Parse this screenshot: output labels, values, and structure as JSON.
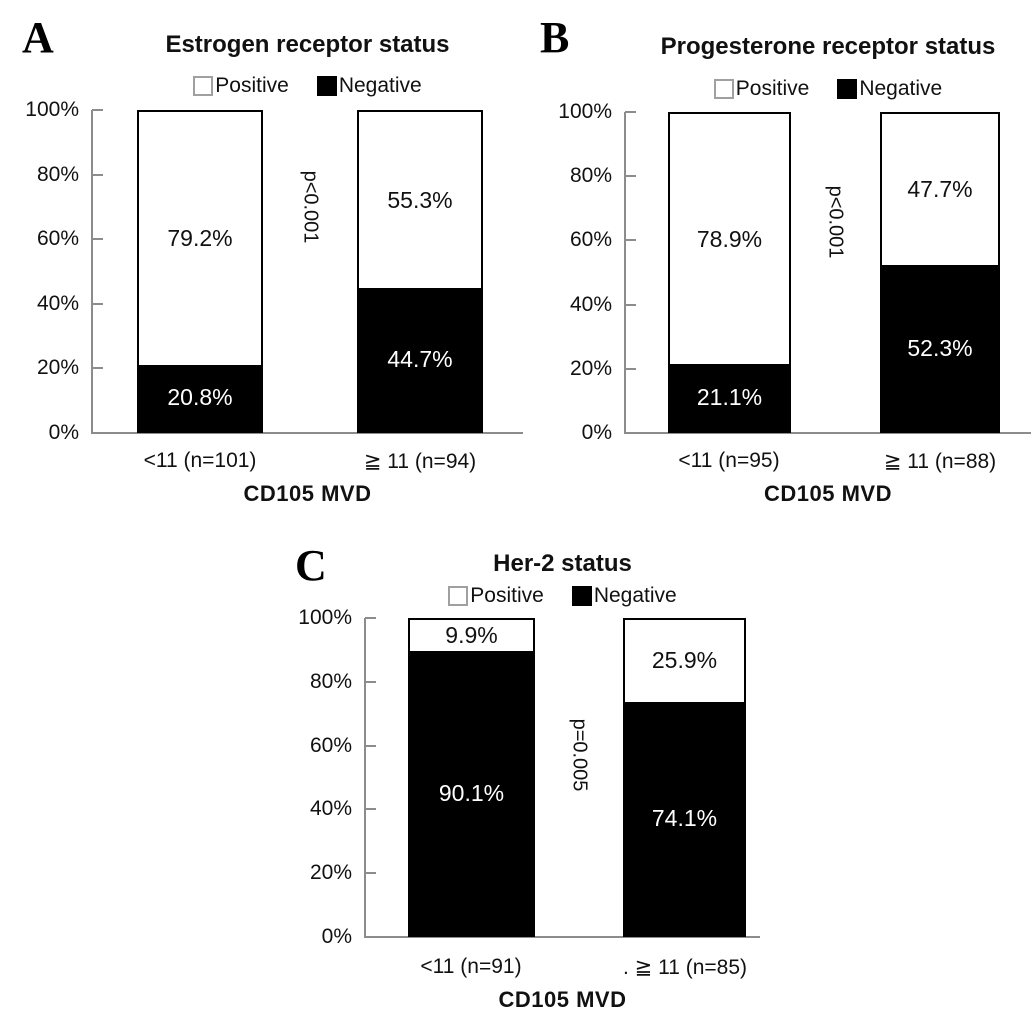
{
  "figure": {
    "background": "#ffffff",
    "axis_color": "#8c8c8c",
    "positive_color": "#ffffff",
    "negative_color": "#000000",
    "swatch_border_color": "#a0a0a0"
  },
  "chart_data": [
    {
      "type": "bar",
      "stacked": true,
      "panel_letter": "A",
      "title": "Estrogen receptor status",
      "xlabel": "CD105 MVD",
      "ylabel": "",
      "ylim": [
        0,
        100
      ],
      "yticks": [
        "100%",
        "80%",
        "60%",
        "40%",
        "20%",
        "0%"
      ],
      "grid": false,
      "legend": [
        "Positive",
        "Negative"
      ],
      "legend_position": "top",
      "categories": [
        "<11 (n=101)",
        "≧ 11 (n=94)"
      ],
      "series": [
        {
          "name": "Positive",
          "values": [
            79.2,
            55.3
          ]
        },
        {
          "name": "Negative",
          "values": [
            20.8,
            44.7
          ]
        }
      ],
      "bar_labels": {
        "positive": [
          "79.2%",
          "55.3%"
        ],
        "negative": [
          "20.8%",
          "44.7%"
        ]
      },
      "p_value": "p<0.001"
    },
    {
      "type": "bar",
      "stacked": true,
      "panel_letter": "B",
      "title": "Progesterone receptor status",
      "xlabel": "CD105 MVD",
      "ylabel": "",
      "ylim": [
        0,
        100
      ],
      "yticks": [
        "100%",
        "80%",
        "60%",
        "40%",
        "20%",
        "0%"
      ],
      "grid": false,
      "legend": [
        "Positive",
        "Negative"
      ],
      "legend_position": "top",
      "categories": [
        "<11 (n=95)",
        "≧ 11 (n=88)"
      ],
      "series": [
        {
          "name": "Positive",
          "values": [
            78.9,
            47.7
          ]
        },
        {
          "name": "Negative",
          "values": [
            21.1,
            52.3
          ]
        }
      ],
      "bar_labels": {
        "positive": [
          "78.9%",
          "47.7%"
        ],
        "negative": [
          "21.1%",
          "52.3%"
        ]
      },
      "p_value": "p<0.001"
    },
    {
      "type": "bar",
      "stacked": true,
      "panel_letter": "C",
      "title": "Her-2 status",
      "xlabel": "CD105 MVD",
      "ylabel": "",
      "ylim": [
        0,
        100
      ],
      "yticks": [
        "100%",
        "80%",
        "60%",
        "40%",
        "20%",
        "0%"
      ],
      "grid": false,
      "legend": [
        "Positive",
        "Negative"
      ],
      "legend_position": "top",
      "categories": [
        "<11 (n=91)",
        ". ≧ 11 (n=85)"
      ],
      "series": [
        {
          "name": "Positive",
          "values": [
            9.9,
            25.9
          ]
        },
        {
          "name": "Negative",
          "values": [
            90.1,
            74.1
          ]
        }
      ],
      "bar_labels": {
        "positive": [
          "9.9%",
          "25.9%"
        ],
        "negative": [
          "90.1%",
          "74.1%"
        ]
      },
      "p_value": "p=0.005"
    }
  ]
}
